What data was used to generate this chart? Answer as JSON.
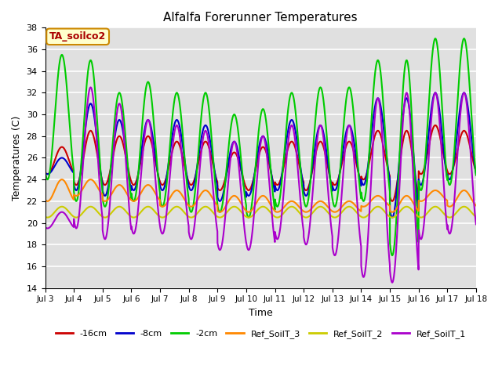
{
  "title": "Alfalfa Forerunner Temperatures",
  "xlabel": "Time",
  "ylabel": "Temperatures (C)",
  "ylim": [
    14,
    38
  ],
  "xlim_days": [
    3,
    18
  ],
  "annotation": "TA_soilco2",
  "bg_color": "#e0e0e0",
  "lines": {
    "-16cm": {
      "color": "#cc0000",
      "lw": 1.5
    },
    "-8cm": {
      "color": "#0000cc",
      "lw": 1.5
    },
    "-2cm": {
      "color": "#00cc00",
      "lw": 1.5
    },
    "Ref_SoilT_3": {
      "color": "#ff8800",
      "lw": 1.5
    },
    "Ref_SoilT_2": {
      "color": "#cccc00",
      "lw": 1.5
    },
    "Ref_SoilT_1": {
      "color": "#aa00cc",
      "lw": 1.5
    }
  },
  "legend_labels": [
    "-16cm",
    "-8cm",
    "-2cm",
    "Ref_SoilT_3",
    "Ref_SoilT_2",
    "Ref_SoilT_1"
  ],
  "legend_colors": [
    "#cc0000",
    "#0000cc",
    "#00cc00",
    "#ff8800",
    "#cccc00",
    "#aa00cc"
  ],
  "tick_days": [
    3,
    4,
    5,
    6,
    7,
    8,
    9,
    10,
    11,
    12,
    13,
    14,
    15,
    16,
    17,
    18
  ],
  "yticks": [
    14,
    16,
    18,
    20,
    22,
    24,
    26,
    28,
    30,
    32,
    34,
    36,
    38
  ],
  "figsize": [
    6.4,
    4.8
  ],
  "dpi": 100
}
